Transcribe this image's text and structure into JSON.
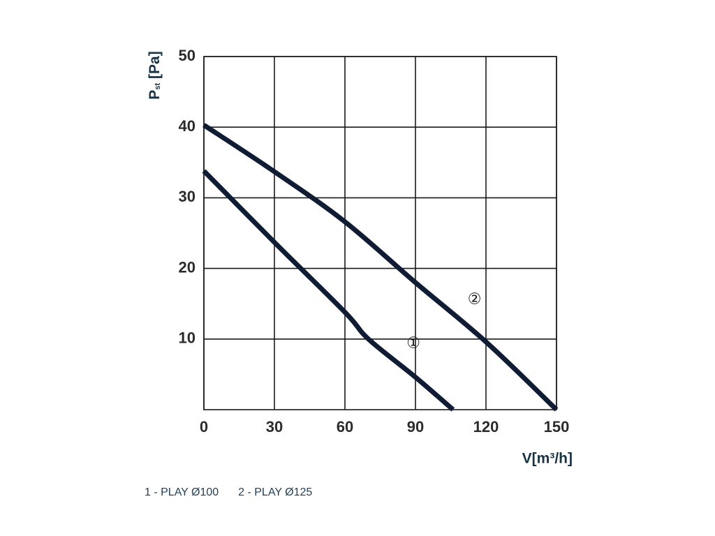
{
  "chart_data": {
    "type": "line",
    "y_label": {
      "main": "P",
      "sub": "st",
      "unit": "[Pa]"
    },
    "x_label": "V[m³/h]",
    "xlim": [
      0,
      150
    ],
    "xticks": [
      0,
      30,
      60,
      90,
      120,
      150
    ],
    "ylim": [
      0,
      50
    ],
    "yticks": [
      10,
      20,
      30,
      40,
      50
    ],
    "grid": true,
    "series": [
      {
        "name": "1 - PLAY Ø100",
        "marker": "①",
        "color": "#0f1c33",
        "x": [
          0,
          30,
          60,
          70,
          90,
          106
        ],
        "values": [
          33.8,
          23.7,
          13.8,
          10,
          4.6,
          0
        ]
      },
      {
        "name": "2 - PLAY Ø125",
        "marker": "②",
        "color": "#0f1c33",
        "x": [
          0,
          30,
          60,
          90,
          120,
          150
        ],
        "values": [
          40.3,
          33.7,
          26.6,
          18,
          9.6,
          0
        ]
      }
    ]
  }
}
